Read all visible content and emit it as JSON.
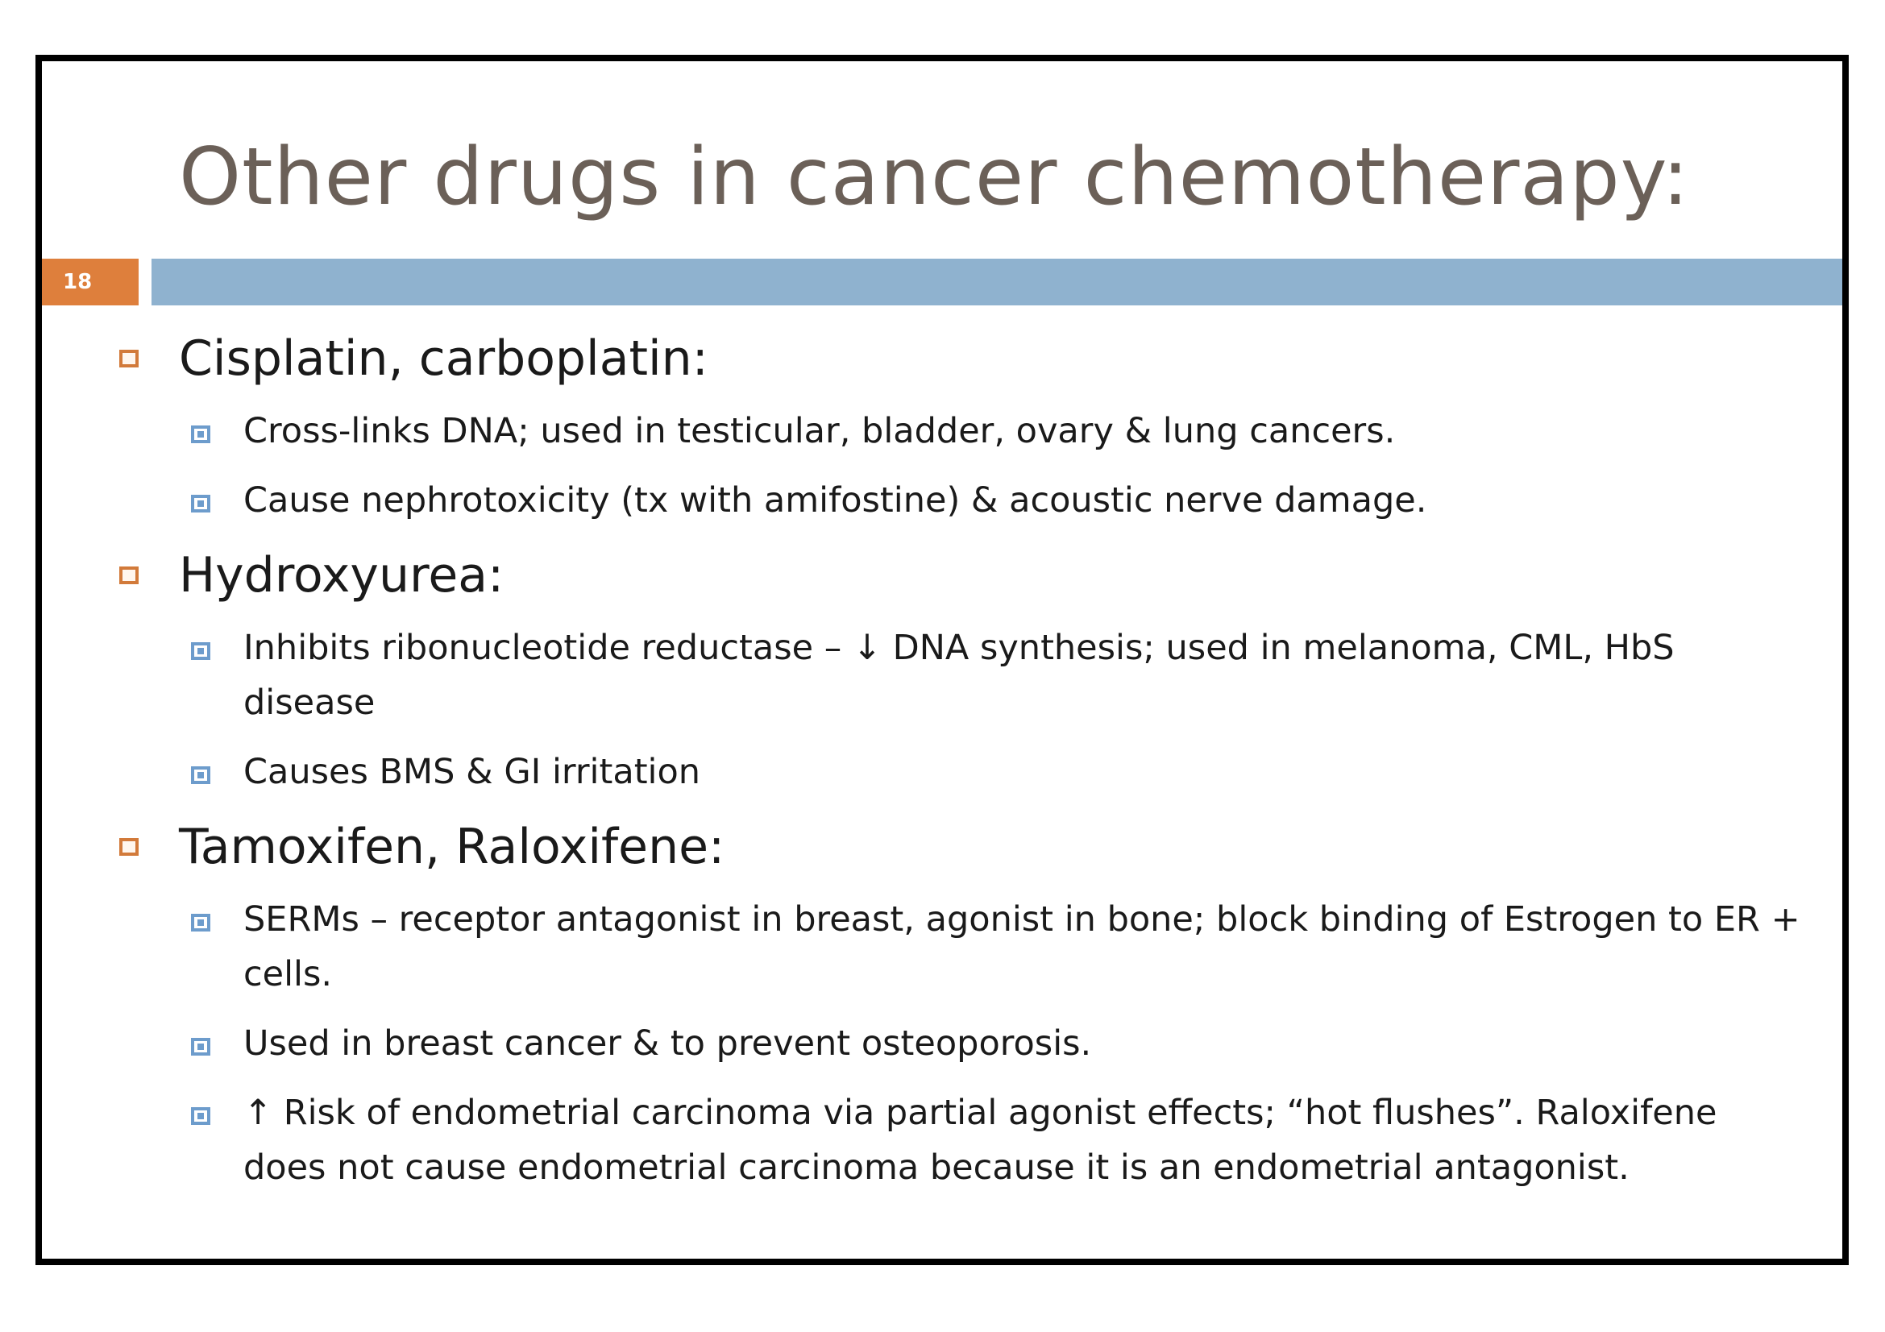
{
  "slide": {
    "title": "Other drugs in cancer chemotherapy:",
    "number": "18"
  },
  "sections": [
    {
      "heading": "Cisplatin, carboplatin:",
      "bullets": [
        "Cross-links DNA; used in testicular, bladder, ovary & lung cancers.",
        "Cause nephrotoxicity (tx with amifostine) & acoustic nerve damage."
      ]
    },
    {
      "heading": "Hydroxyurea:",
      "bullets": [
        "Inhibits ribonucleotide reductase – ↓ DNA synthesis; used in melanoma, CML, HbS disease",
        "Causes BMS & GI irritation"
      ]
    },
    {
      "heading": "Tamoxifen, Raloxifene:",
      "bullets": [
        "SERMs – receptor antagonist in breast, agonist in bone; block binding of Estrogen to ER + cells.",
        "Used in breast cancer & to prevent osteoporosis.",
        "↑ Risk of endometrial carcinoma via partial agonist effects; “hot flushes”. Raloxifene does not cause endometrial carcinoma because it is an endometrial antagonist."
      ]
    }
  ],
  "colors": {
    "title_text": "#6b6058",
    "title_bar": "#8fb2cf",
    "slide_number_bg": "#de7f3c",
    "level1_bullet": "#d27a3a",
    "level2_bullet": "#6d9ccc"
  },
  "icons": {
    "level1_bullet": "hollow-square-bullet-icon",
    "level2_bullet": "filled-square-bullet-icon"
  }
}
